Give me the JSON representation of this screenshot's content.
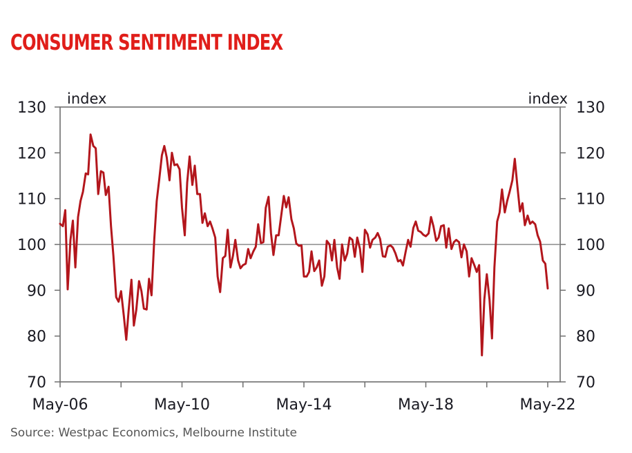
{
  "title": "CONSUMER SENTIMENT INDEX",
  "source": "Source: Westpac Economics, Melbourne Institute",
  "colors": {
    "title": "#e01e1a",
    "line": "#b3161c",
    "axis": "#6e6e6e",
    "text": "#1a1a22"
  },
  "chart_data": {
    "type": "line",
    "title": "CONSUMER SENTIMENT INDEX",
    "xlabel": "",
    "ylabel_left": "index",
    "ylabel_right": "index",
    "ylim": [
      70,
      130
    ],
    "xlim": [
      2006.33,
      2022.33
    ],
    "yticks": [
      70,
      80,
      90,
      100,
      110,
      120,
      130
    ],
    "ytick_labels": [
      "70",
      "80",
      "90",
      "100",
      "110",
      "120",
      "130"
    ],
    "xticks": [
      2006.33,
      2008.33,
      2010.33,
      2012.33,
      2014.33,
      2016.33,
      2018.33,
      2020.33,
      2022.33
    ],
    "xtick_labels": [
      "May-06",
      "",
      "May-10",
      "",
      "May-14",
      "",
      "May-18",
      "",
      "May-22"
    ],
    "reference_line": 100,
    "grid": false,
    "legend": "none",
    "series": [
      {
        "name": "Consumer Sentiment Index",
        "x": [
          2006.33,
          2006.42,
          2006.5,
          2006.58,
          2006.67,
          2006.75,
          2006.83,
          2006.92,
          2007.0,
          2007.08,
          2007.17,
          2007.25,
          2007.33,
          2007.42,
          2007.5,
          2007.58,
          2007.67,
          2007.75,
          2007.83,
          2007.92,
          2008.0,
          2008.08,
          2008.17,
          2008.25,
          2008.33,
          2008.42,
          2008.5,
          2008.58,
          2008.67,
          2008.75,
          2008.83,
          2008.92,
          2009.0,
          2009.08,
          2009.17,
          2009.25,
          2009.33,
          2009.42,
          2009.5,
          2009.58,
          2009.67,
          2009.75,
          2009.83,
          2009.92,
          2010.0,
          2010.08,
          2010.17,
          2010.25,
          2010.33,
          2010.42,
          2010.5,
          2010.58,
          2010.67,
          2010.75,
          2010.83,
          2010.92,
          2011.0,
          2011.08,
          2011.17,
          2011.25,
          2011.33,
          2011.42,
          2011.5,
          2011.58,
          2011.67,
          2011.75,
          2011.83,
          2011.92,
          2012.0,
          2012.08,
          2012.17,
          2012.25,
          2012.33,
          2012.42,
          2012.5,
          2012.58,
          2012.67,
          2012.75,
          2012.83,
          2012.92,
          2013.0,
          2013.08,
          2013.17,
          2013.25,
          2013.33,
          2013.42,
          2013.5,
          2013.58,
          2013.67,
          2013.75,
          2013.83,
          2013.92,
          2014.0,
          2014.08,
          2014.17,
          2014.25,
          2014.33,
          2014.42,
          2014.5,
          2014.58,
          2014.67,
          2014.75,
          2014.83,
          2014.92,
          2015.0,
          2015.08,
          2015.17,
          2015.25,
          2015.33,
          2015.42,
          2015.5,
          2015.58,
          2015.67,
          2015.75,
          2015.83,
          2015.92,
          2016.0,
          2016.08,
          2016.17,
          2016.25,
          2016.33,
          2016.42,
          2016.5,
          2016.58,
          2016.67,
          2016.75,
          2016.83,
          2016.92,
          2017.0,
          2017.08,
          2017.17,
          2017.25,
          2017.33,
          2017.42,
          2017.5,
          2017.58,
          2017.67,
          2017.75,
          2017.83,
          2017.92,
          2018.0,
          2018.08,
          2018.17,
          2018.25,
          2018.33,
          2018.42,
          2018.5,
          2018.58,
          2018.67,
          2018.75,
          2018.83,
          2018.92,
          2019.0,
          2019.08,
          2019.17,
          2019.25,
          2019.33,
          2019.42,
          2019.5,
          2019.58,
          2019.67,
          2019.75,
          2019.83,
          2019.92,
          2020.0,
          2020.08,
          2020.17,
          2020.25,
          2020.33,
          2020.42,
          2020.5,
          2020.58,
          2020.67,
          2020.75,
          2020.83,
          2020.92,
          2021.0,
          2021.08,
          2021.17,
          2021.25,
          2021.33,
          2021.42,
          2021.5,
          2021.58,
          2021.67,
          2021.75,
          2021.83,
          2021.92,
          2022.0,
          2022.08,
          2022.17,
          2022.25,
          2022.33
        ],
        "values": [
          104.5,
          104.0,
          107.5,
          90.2,
          101.0,
          105.2,
          95.0,
          106.0,
          109.5,
          111.5,
          115.5,
          115.3,
          124.0,
          121.5,
          121.0,
          111.0,
          116.0,
          115.7,
          110.8,
          112.6,
          104.0,
          97.5,
          88.5,
          87.5,
          89.8,
          84.5,
          79.2,
          85.7,
          92.3,
          82.3,
          85.7,
          92.0,
          89.8,
          86.0,
          85.8,
          92.5,
          88.9,
          101.0,
          109.5,
          114.0,
          119.5,
          121.5,
          119.0,
          114.0,
          120.0,
          117.3,
          117.5,
          116.4,
          108.0,
          102.0,
          113.5,
          119.2,
          113.0,
          117.2,
          111.0,
          111.0,
          104.7,
          106.8,
          104.0,
          105.0,
          103.5,
          101.5,
          93.0,
          89.6,
          97.0,
          97.5,
          103.2,
          95.0,
          97.5,
          101.0,
          96.5,
          94.8,
          95.5,
          95.8,
          99.0,
          97.0,
          98.5,
          99.5,
          104.4,
          100.3,
          100.5,
          108.0,
          110.4,
          102.5,
          97.7,
          102.0,
          102.0,
          106.0,
          110.6,
          108.1,
          110.3,
          105.5,
          103.5,
          100.2,
          99.7,
          99.8,
          93.0,
          93.0,
          94.0,
          98.5,
          94.2,
          95.0,
          96.5,
          91.0,
          93.0,
          100.8,
          100.0,
          96.5,
          101.0,
          95.0,
          92.5,
          100.0,
          96.5,
          98.0,
          101.5,
          101.0,
          97.3,
          101.5,
          99.0,
          94.0,
          103.2,
          102.2,
          99.3,
          101.0,
          101.5,
          102.5,
          101.2,
          97.4,
          97.3,
          99.5,
          99.8,
          99.3,
          98.1,
          96.3,
          96.6,
          95.4,
          98.5,
          101.0,
          99.5,
          103.6,
          105.0,
          103.0,
          102.7,
          102.1,
          101.8,
          102.4,
          106.0,
          104.0,
          100.8,
          101.5,
          104.0,
          104.2,
          99.3,
          103.5,
          99.0,
          100.5,
          101.0,
          100.5,
          97.2,
          100.0,
          98.5,
          93.0,
          97.0,
          95.5,
          94.0,
          95.5,
          75.8,
          88.0,
          93.5,
          88.0,
          79.5,
          95.0,
          105.0,
          107.0,
          112.0,
          107.0,
          109.5,
          111.5,
          114.0,
          118.7,
          113.0,
          107.2,
          109.0,
          104.2,
          106.3,
          104.5,
          105.0,
          104.4,
          102.0,
          100.6,
          96.5,
          95.8,
          90.4
        ]
      }
    ]
  }
}
